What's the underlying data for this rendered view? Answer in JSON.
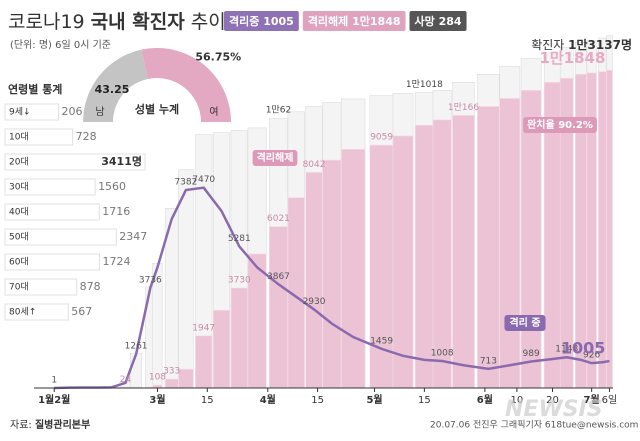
{
  "header": {
    "title_start": "코로나19",
    "title_bold": "국내 확진자",
    "title_end": "추이",
    "unit_note": "(단위: 명) 6일 0시 기준",
    "total_label": "확진자",
    "total_value": "1만3137명"
  },
  "badges": [
    {
      "text": "격리중 1005",
      "color": "#8f72b5"
    },
    {
      "text": "격리해제 1만1848",
      "color": "#dfa3bd"
    },
    {
      "text": "사망 284",
      "color": "#555555"
    }
  ],
  "gender": {
    "title": "성별 누계",
    "slices": [
      {
        "name": "남",
        "value": 43.25,
        "color": "#c4c4c4"
      },
      {
        "name": "여",
        "value": 56.75,
        "value_label": "56.75%",
        "color": "#e3a9c2"
      }
    ]
  },
  "age": {
    "title": "연령별 통계",
    "categories": [
      "9세↓",
      "10대",
      "20대",
      "30대",
      "40대",
      "50대",
      "60대",
      "70대",
      "80세↑"
    ],
    "values": [
      206,
      728,
      3411,
      1560,
      1716,
      2347,
      1724,
      878,
      567
    ],
    "value_labels": [
      null,
      null,
      "3411명",
      null,
      null,
      null,
      null,
      null,
      null
    ]
  },
  "chart_data": {
    "type": "combo",
    "xlim": [
      -4,
      157
    ],
    "ylim": [
      0,
      13500
    ],
    "xticks": [
      {
        "value": 0,
        "label": "1월2월"
      },
      {
        "value": 29,
        "label": "3월"
      },
      {
        "value": 43,
        "label": "15"
      },
      {
        "value": 60,
        "label": "4월"
      },
      {
        "value": 74,
        "label": "15"
      },
      {
        "value": 90,
        "label": "5월"
      },
      {
        "value": 104,
        "label": "15"
      },
      {
        "value": 121,
        "label": "6월"
      },
      {
        "value": 130,
        "label": "10"
      },
      {
        "value": 140,
        "label": "20"
      },
      {
        "value": 151,
        "label": "7월"
      },
      {
        "value": 156,
        "label": "6일"
      }
    ],
    "x": [
      0,
      4,
      8,
      12,
      16,
      20,
      23,
      27,
      29,
      33,
      37,
      42,
      47,
      52,
      57,
      63,
      68,
      73,
      78,
      84,
      92,
      98,
      104,
      109,
      115,
      122,
      128,
      134,
      140,
      144,
      148,
      151,
      154,
      156
    ],
    "series": [
      {
        "name": "확진자",
        "type": "bar",
        "color": "#f4f4f4",
        "values": [
          12,
          19,
          27,
          28,
          30,
          215,
          1300,
          3770,
          4650,
          6700,
          8150,
          9450,
          9520,
          9600,
          9700,
          10062,
          10300,
          10500,
          10650,
          10780,
          10900,
          10990,
          11018,
          11100,
          11400,
          11700,
          12000,
          12300,
          12500,
          12700,
          12900,
          12960,
          13050,
          13137
        ],
        "value_labels": [
          null,
          null,
          null,
          null,
          null,
          null,
          null,
          null,
          null,
          null,
          null,
          null,
          null,
          null,
          null,
          "1만62",
          null,
          null,
          null,
          null,
          null,
          null,
          "1만1018",
          null,
          null,
          null,
          null,
          null,
          null,
          null,
          null,
          null,
          null,
          null
        ]
      },
      {
        "name": "격리해제",
        "type": "bar",
        "color": "#ebc3d4",
        "values": [
          0,
          1,
          3,
          7,
          10,
          24,
          22,
          30,
          108,
          333,
          700,
          1947,
          2900,
          3730,
          5000,
          6021,
          7100,
          8042,
          8500,
          8900,
          9059,
          9400,
          9800,
          10000,
          10166,
          10500,
          10800,
          11100,
          11400,
          11550,
          11700,
          11750,
          11800,
          11848
        ],
        "value_labels": [
          null,
          null,
          null,
          null,
          null,
          "24",
          null,
          null,
          "108",
          "333",
          null,
          "1947",
          null,
          "3730",
          null,
          "6021",
          null,
          "8042",
          null,
          null,
          "9059",
          null,
          null,
          null,
          "1만166",
          null,
          null,
          null,
          null,
          null,
          null,
          null,
          null,
          "1만1848"
        ]
      },
      {
        "name": "격리 중",
        "type": "line",
        "color": "#8a6aae",
        "values": [
          1,
          15,
          20,
          20,
          22,
          190,
          1261,
          3736,
          4500,
          6300,
          7382,
          7470,
          6600,
          5281,
          4500,
          3867,
          3400,
          2930,
          2400,
          1900,
          1459,
          1200,
          1050,
          1008,
          850,
          713,
          850,
          989,
          1080,
          1148,
          1050,
          926,
          960,
          1005
        ],
        "value_labels": [
          "1",
          null,
          null,
          null,
          null,
          null,
          "1261",
          "3736",
          null,
          null,
          "7382",
          "7470",
          null,
          "5281",
          null,
          "3867",
          null,
          "2930",
          null,
          null,
          "1459",
          null,
          null,
          "1008",
          null,
          "713",
          null,
          "989",
          null,
          "1148",
          null,
          "926",
          null,
          "1005"
        ]
      }
    ],
    "annotations": [
      "격리해제",
      "완치율 90.2%"
    ]
  },
  "footer": {
    "source_label": "자료:",
    "source": "질병관리본부",
    "credit": "20.07.06 전진우 그래픽기자 618tue@newsis.com",
    "watermark": "NEWSIS"
  }
}
